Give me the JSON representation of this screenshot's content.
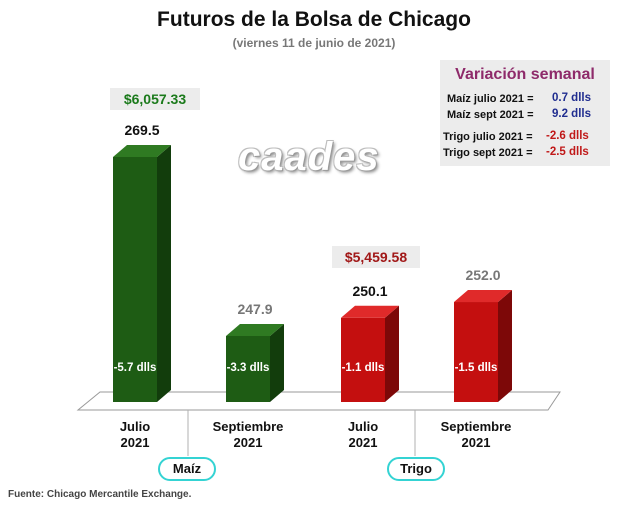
{
  "title": "Futuros de la Bolsa de Chicago",
  "subtitle": "(viernes 11 de junio de 2021)",
  "watermark": "caades",
  "source": "Fuente: Chicago Mercantile Exchange.",
  "price_boxes": [
    {
      "text": "$6,057.33",
      "color": "#1b7a1b"
    },
    {
      "text": "$5,459.58",
      "color": "#a11818"
    }
  ],
  "legend": {
    "title": "Variación semanal",
    "rows": [
      {
        "label": "Maíz julio 2021  =",
        "value": "0.7 dlls",
        "color": "#1f2c8f"
      },
      {
        "label": "Maíz sept 2021  =",
        "value": "9.2 dlls",
        "color": "#1f2c8f"
      },
      {
        "label": "Trigo julio 2021 =",
        "value": "-2.6 dlls",
        "color": "#c01818"
      },
      {
        "label": "Trigo sept 2021 =",
        "value": "-2.5 dlls",
        "color": "#c01818"
      }
    ]
  },
  "groups": [
    {
      "name": "Maíz"
    },
    {
      "name": "Trigo"
    }
  ],
  "colors": {
    "maiz_front": "#1e5c14",
    "maiz_side": "#123d0c",
    "maiz_top": "#2f7a22",
    "trigo_front": "#c40f0f",
    "trigo_side": "#7d0808",
    "trigo_top": "#e02a2a"
  },
  "chart_data": {
    "type": "bar",
    "title": "Futuros de la Bolsa de Chicago",
    "subtitle": "(viernes 11 de junio de 2021)",
    "categories": [
      "Julio\n2021",
      "Septiembre\n2021",
      "Julio\n2021",
      "Septiembre\n2021"
    ],
    "category_groups": [
      "Maíz",
      "Maíz",
      "Trigo",
      "Trigo"
    ],
    "values": [
      269.5,
      247.9,
      250.1,
      252.0
    ],
    "value_labels": [
      "269.5",
      "247.9",
      "250.1",
      "252.0"
    ],
    "value_label_colors": [
      "#111111",
      "#777777",
      "#111111",
      "#777777"
    ],
    "inner_labels": [
      "-5.7 dlls",
      "-3.3 dlls",
      "-1.1 dlls",
      "-1.5 dlls"
    ],
    "bar_colors": [
      "maiz",
      "maiz",
      "trigo",
      "trigo"
    ],
    "ylim": [
      240,
      272
    ]
  }
}
